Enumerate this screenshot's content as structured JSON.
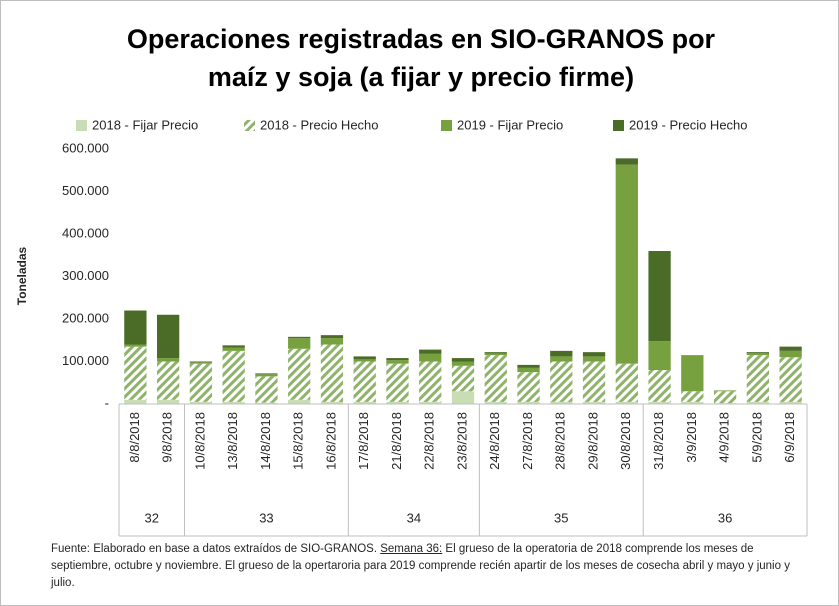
{
  "chart_data": {
    "type": "stacked_bar",
    "title": [
      "Operaciones registradas en SIO-GRANOS por",
      "maíz y soja (a fijar y precio firme)"
    ],
    "ylabel": "Toneladas",
    "categories": [
      "8/8/2018",
      "9/8/2018",
      "10/8/2018",
      "13/8/2018",
      "14/8/2018",
      "15/8/2018",
      "16/8/2018",
      "17/8/2018",
      "21/8/2018",
      "22/8/2018",
      "23/8/2018",
      "24/8/2018",
      "27/8/2018",
      "28/8/2018",
      "29/8/2018",
      "30/8/2018",
      "31/8/2018",
      "3/9/2018",
      "4/9/2018",
      "5/9/2018",
      "6/9/2018"
    ],
    "weeks": [
      "32",
      "32",
      "33",
      "33",
      "33",
      "33",
      "33",
      "34",
      "34",
      "34",
      "34",
      "35",
      "35",
      "35",
      "35",
      "35",
      "36",
      "36",
      "36",
      "36",
      "36"
    ],
    "series": [
      {
        "name": "2018 - Fijar Precio",
        "color": "#c9ddb4",
        "pattern": "solid",
        "values": [
          10000,
          10000,
          5000,
          5000,
          3000,
          10000,
          5000,
          5000,
          5000,
          5000,
          30000,
          5000,
          5000,
          5000,
          5000,
          5000,
          5000,
          5000,
          2000,
          5000,
          5000
        ]
      },
      {
        "name": "2018 - Precio Hecho",
        "color": "#8fb36b",
        "pattern": "hatch",
        "values": [
          125000,
          90000,
          90000,
          120000,
          62000,
          120000,
          135000,
          95000,
          90000,
          95000,
          60000,
          110000,
          70000,
          95000,
          95000,
          90000,
          75000,
          25000,
          28000,
          110000,
          105000
        ]
      },
      {
        "name": "2019 - Fijar Precio",
        "color": "#77a03e",
        "pattern": "solid",
        "values": [
          5000,
          8000,
          3000,
          8000,
          5000,
          25000,
          15000,
          5000,
          8000,
          18000,
          10000,
          4000,
          10000,
          12000,
          12000,
          468000,
          68000,
          85000,
          2000,
          5000,
          15000
        ]
      },
      {
        "name": "2019 - Precio Hecho",
        "color": "#4b6c27",
        "pattern": "solid",
        "values": [
          80000,
          102000,
          2000,
          5000,
          2000,
          3000,
          7000,
          7000,
          5000,
          10000,
          8000,
          3000,
          7000,
          13000,
          10000,
          15000,
          212000,
          0,
          0,
          2000,
          10000
        ]
      }
    ],
    "ylim": [
      0,
      600000
    ],
    "yticks": [
      {
        "value": 0,
        "label": "-"
      },
      {
        "value": 100000,
        "label": "100.000"
      },
      {
        "value": 200000,
        "label": "200.000"
      },
      {
        "value": 300000,
        "label": "300.000"
      },
      {
        "value": 400000,
        "label": "400.000"
      },
      {
        "value": 500000,
        "label": "500.000"
      },
      {
        "value": 600000,
        "label": "600.000"
      }
    ],
    "legend": "top",
    "note": [
      "Fuente: Elaborado en base a datos extraídos de SIO-GRANOS. ",
      "Semana 36:",
      " El grueso de la operatoria de 2018 comprende los meses de septiembre, octubre y noviembre. El grueso de la opertaroria para 2019 comprende recién apartir de los meses de cosecha abril y mayo y junio y julio."
    ]
  }
}
